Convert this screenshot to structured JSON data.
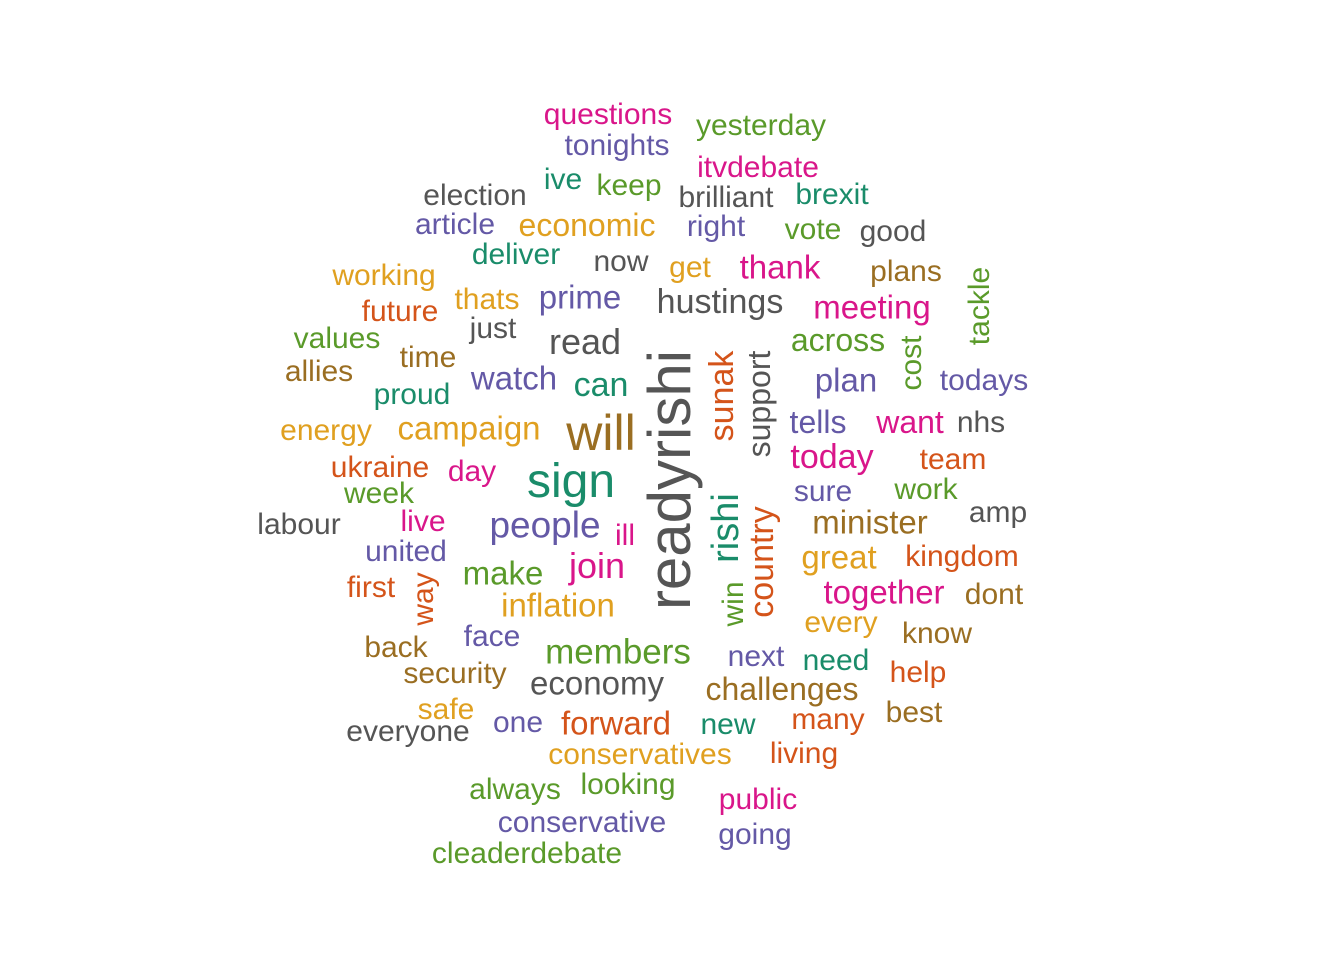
{
  "palette": {
    "pink": "#d9168a",
    "purple": "#6459a6",
    "teal": "#1a8c6a",
    "green": "#5a9a2a",
    "gray": "#555555",
    "gold": "#e0a020",
    "brown": "#9a6e22",
    "orange": "#d4541a"
  },
  "words": [
    {
      "text": "readyrishi",
      "color": "gray",
      "rotated": true
    },
    {
      "text": "will",
      "color": "brown"
    },
    {
      "text": "sign",
      "color": "teal"
    },
    {
      "text": "rishi",
      "color": "teal",
      "rotated": true
    },
    {
      "text": "country",
      "color": "orange",
      "rotated": true
    },
    {
      "text": "sunak",
      "color": "orange",
      "rotated": true
    },
    {
      "text": "support",
      "color": "gray",
      "rotated": true
    },
    {
      "text": "people",
      "color": "purple"
    },
    {
      "text": "members",
      "color": "green"
    },
    {
      "text": "hustings",
      "color": "gray"
    },
    {
      "text": "read",
      "color": "gray"
    },
    {
      "text": "join",
      "color": "pink"
    },
    {
      "text": "inflation",
      "color": "gold"
    },
    {
      "text": "economy",
      "color": "gray"
    },
    {
      "text": "challenges",
      "color": "brown"
    },
    {
      "text": "today",
      "color": "pink"
    },
    {
      "text": "minister",
      "color": "brown"
    },
    {
      "text": "campaign",
      "color": "gold"
    },
    {
      "text": "watch",
      "color": "purple"
    },
    {
      "text": "can",
      "color": "teal"
    },
    {
      "text": "prime",
      "color": "purple"
    },
    {
      "text": "meeting",
      "color": "pink"
    },
    {
      "text": "across",
      "color": "green"
    },
    {
      "text": "plan",
      "color": "purple"
    },
    {
      "text": "thank",
      "color": "pink"
    },
    {
      "text": "economic",
      "color": "gold"
    },
    {
      "text": "make",
      "color": "green"
    },
    {
      "text": "forward",
      "color": "orange"
    },
    {
      "text": "great",
      "color": "gold"
    },
    {
      "text": "together",
      "color": "pink"
    },
    {
      "text": "tells",
      "color": "purple"
    },
    {
      "text": "want",
      "color": "pink"
    },
    {
      "text": "conservatives",
      "color": "gold"
    },
    {
      "text": "conservative",
      "color": "purple"
    },
    {
      "text": "face",
      "color": "purple"
    },
    {
      "text": "every",
      "color": "gold"
    },
    {
      "text": "next",
      "color": "purple"
    },
    {
      "text": "deliver",
      "color": "teal"
    },
    {
      "text": "questions",
      "color": "pink"
    },
    {
      "text": "yesterday",
      "color": "green"
    },
    {
      "text": "tonights",
      "color": "purple"
    },
    {
      "text": "itvdebate",
      "color": "pink"
    },
    {
      "text": "election",
      "color": "gray"
    },
    {
      "text": "ive",
      "color": "teal"
    },
    {
      "text": "keep",
      "color": "green"
    },
    {
      "text": "brilliant",
      "color": "gray"
    },
    {
      "text": "brexit",
      "color": "teal"
    },
    {
      "text": "article",
      "color": "purple"
    },
    {
      "text": "right",
      "color": "purple"
    },
    {
      "text": "vote",
      "color": "green"
    },
    {
      "text": "good",
      "color": "gray"
    },
    {
      "text": "now",
      "color": "gray"
    },
    {
      "text": "get",
      "color": "gold"
    },
    {
      "text": "working",
      "color": "gold"
    },
    {
      "text": "plans",
      "color": "brown"
    },
    {
      "text": "tackle",
      "color": "green",
      "rotated": true
    },
    {
      "text": "thats",
      "color": "gold"
    },
    {
      "text": "future",
      "color": "orange"
    },
    {
      "text": "just",
      "color": "gray"
    },
    {
      "text": "values",
      "color": "green"
    },
    {
      "text": "cost",
      "color": "green",
      "rotated": true
    },
    {
      "text": "time",
      "color": "brown"
    },
    {
      "text": "allies",
      "color": "brown"
    },
    {
      "text": "proud",
      "color": "teal"
    },
    {
      "text": "todays",
      "color": "purple"
    },
    {
      "text": "energy",
      "color": "gold"
    },
    {
      "text": "nhs",
      "color": "gray"
    },
    {
      "text": "ukraine",
      "color": "orange"
    },
    {
      "text": "day",
      "color": "pink"
    },
    {
      "text": "team",
      "color": "orange"
    },
    {
      "text": "week",
      "color": "green"
    },
    {
      "text": "sure",
      "color": "purple"
    },
    {
      "text": "work",
      "color": "green"
    },
    {
      "text": "labour",
      "color": "gray"
    },
    {
      "text": "live",
      "color": "pink"
    },
    {
      "text": "ill",
      "color": "pink"
    },
    {
      "text": "amp",
      "color": "gray"
    },
    {
      "text": "united",
      "color": "purple"
    },
    {
      "text": "kingdom",
      "color": "orange"
    },
    {
      "text": "first",
      "color": "orange"
    },
    {
      "text": "way",
      "color": "orange",
      "rotated": true
    },
    {
      "text": "dont",
      "color": "brown"
    },
    {
      "text": "win",
      "color": "green",
      "rotated": true
    },
    {
      "text": "back",
      "color": "brown"
    },
    {
      "text": "know",
      "color": "brown"
    },
    {
      "text": "need",
      "color": "teal"
    },
    {
      "text": "security",
      "color": "brown"
    },
    {
      "text": "help",
      "color": "orange"
    },
    {
      "text": "safe",
      "color": "gold"
    },
    {
      "text": "best",
      "color": "brown"
    },
    {
      "text": "everyone",
      "color": "gray"
    },
    {
      "text": "one",
      "color": "purple"
    },
    {
      "text": "new",
      "color": "teal"
    },
    {
      "text": "many",
      "color": "orange"
    },
    {
      "text": "living",
      "color": "orange"
    },
    {
      "text": "always",
      "color": "green"
    },
    {
      "text": "looking",
      "color": "green"
    },
    {
      "text": "public",
      "color": "pink"
    },
    {
      "text": "going",
      "color": "purple"
    },
    {
      "text": "cleaderdebate",
      "color": "green"
    }
  ]
}
